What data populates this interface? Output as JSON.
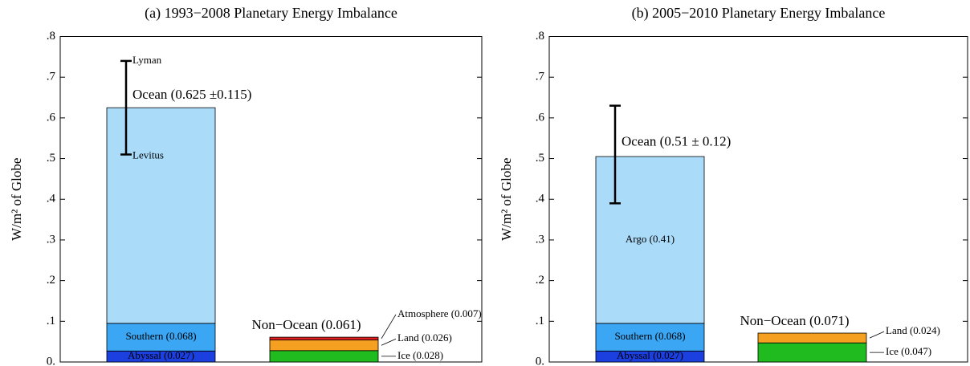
{
  "chart_data": [
    {
      "type": "stacked_bar",
      "title": "(a)  1993−2008 Planetary Energy Imbalance",
      "ylabel": "W/m² of Globe",
      "ylim": [
        0,
        0.8
      ],
      "yticks": [
        {
          "value": 0,
          "label": "0."
        },
        {
          "value": 0.1,
          "label": ".1"
        },
        {
          "value": 0.2,
          "label": ".2"
        },
        {
          "value": 0.3,
          "label": ".3"
        },
        {
          "value": 0.4,
          "label": ".4"
        },
        {
          "value": 0.5,
          "label": ".5"
        },
        {
          "value": 0.6,
          "label": ".6"
        },
        {
          "value": 0.7,
          "label": ".7"
        },
        {
          "value": 0.8,
          "label": ".8"
        }
      ],
      "bars": [
        {
          "label": "Ocean (0.625 ±0.115)",
          "total": 0.625,
          "error": 0.115,
          "error_labels": [
            "Lyman",
            "Levitus"
          ],
          "segments": [
            {
              "name": "Abyssal (0.027)",
              "value": 0.027,
              "color": "#1c3fe0"
            },
            {
              "name": "Southern (0.068)",
              "value": 0.068,
              "color": "#3aa6f4"
            },
            {
              "value": 0.53,
              "color": "#aadcfa"
            }
          ]
        },
        {
          "label": "Non−Ocean (0.061)",
          "total": 0.061,
          "segments": [
            {
              "name": "Ice (0.028)",
              "value": 0.028,
              "color": "#1fbb1f"
            },
            {
              "name": "Land (0.026)",
              "value": 0.026,
              "color": "#f5a020"
            },
            {
              "name": "Atmosphere (0.007)",
              "value": 0.007,
              "color": "#e02020"
            }
          ]
        }
      ]
    },
    {
      "type": "stacked_bar",
      "title": "(b)  2005−2010 Planetary Energy Imbalance",
      "ylabel": "W/m² of Globe",
      "ylim": [
        0,
        0.8
      ],
      "yticks": [
        {
          "value": 0,
          "label": "0."
        },
        {
          "value": 0.1,
          "label": ".1"
        },
        {
          "value": 0.2,
          "label": ".2"
        },
        {
          "value": 0.3,
          "label": ".3"
        },
        {
          "value": 0.4,
          "label": ".4"
        },
        {
          "value": 0.5,
          "label": ".5"
        },
        {
          "value": 0.6,
          "label": ".6"
        },
        {
          "value": 0.7,
          "label": ".7"
        },
        {
          "value": 0.8,
          "label": ".8"
        }
      ],
      "bars": [
        {
          "label": "Ocean (0.51 ± 0.12)",
          "total": 0.51,
          "error": 0.12,
          "segments": [
            {
              "name": "Abyssal (0.027)",
              "value": 0.027,
              "color": "#1c3fe0"
            },
            {
              "name": "Southern (0.068)",
              "value": 0.068,
              "color": "#3aa6f4"
            },
            {
              "name": "Argo (0.41)",
              "value": 0.41,
              "color": "#aadcfa"
            }
          ]
        },
        {
          "label": "Non−Ocean (0.071)",
          "total": 0.071,
          "segments": [
            {
              "name": "Ice (0.047)",
              "value": 0.047,
              "color": "#1fbb1f"
            },
            {
              "name": "Land (0.024)",
              "value": 0.024,
              "color": "#f5a020"
            }
          ]
        }
      ]
    }
  ]
}
